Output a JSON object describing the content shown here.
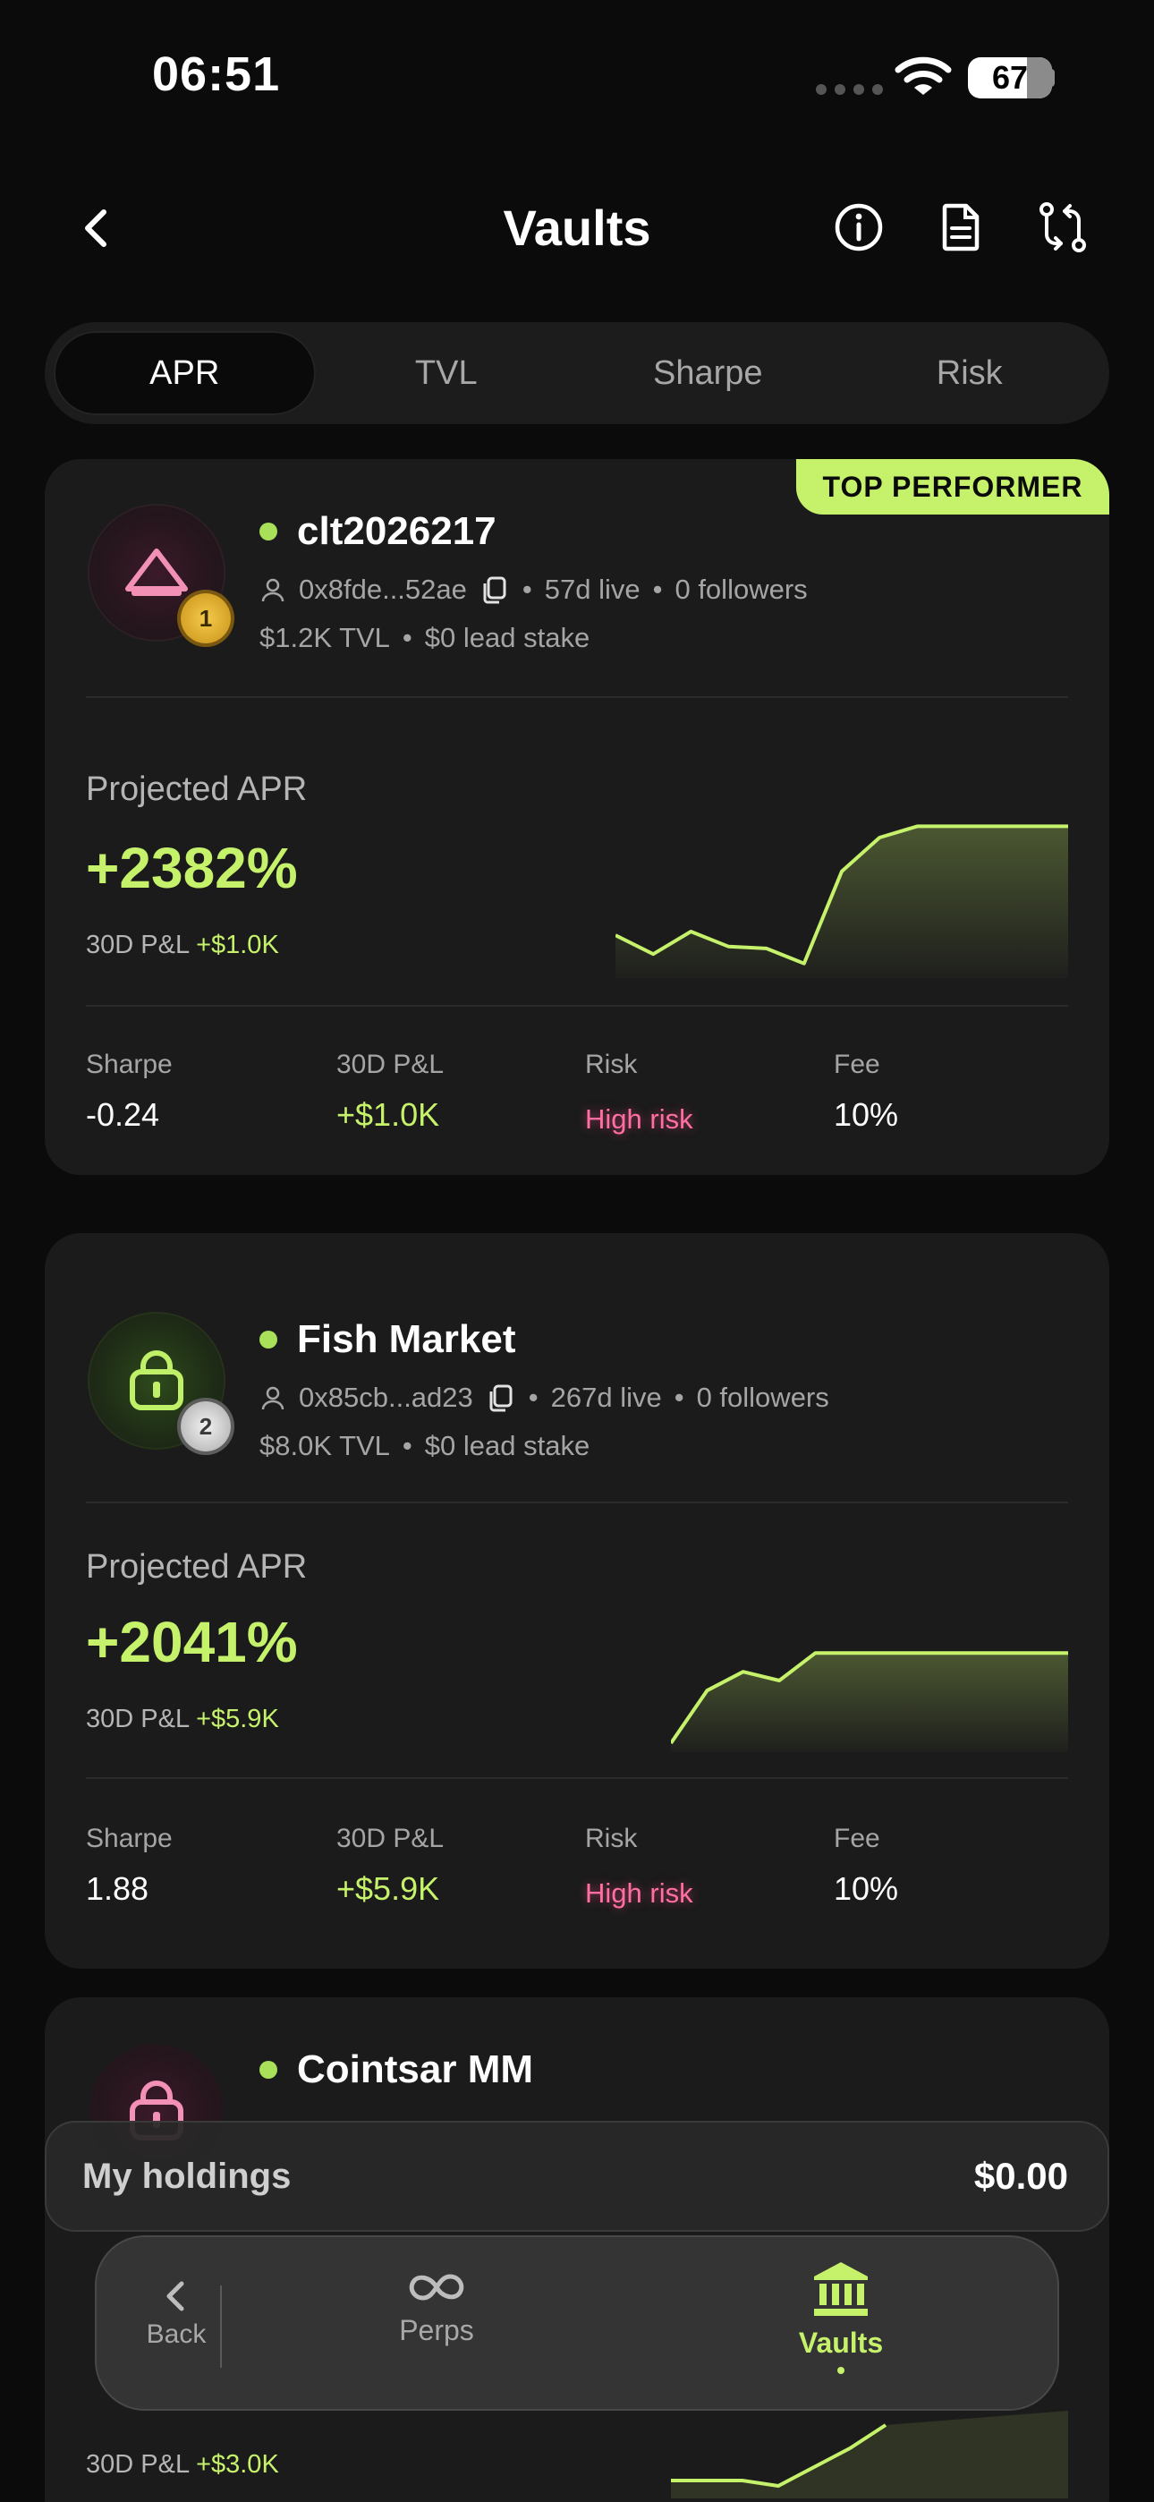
{
  "status_bar": {
    "time": "06:51",
    "battery": "67"
  },
  "header": {
    "title": "Vaults"
  },
  "tabs": [
    {
      "label": "APR",
      "active": true
    },
    {
      "label": "TVL",
      "active": false
    },
    {
      "label": "Sharpe",
      "active": false
    },
    {
      "label": "Risk",
      "active": false
    }
  ],
  "badge": {
    "top_performer": "TOP PERFORMER"
  },
  "vaults": [
    {
      "name": "clt2026217",
      "rank": "1",
      "address": "0x8fde...52ae",
      "live": "57d live",
      "followers": "0 followers",
      "tvl": "$1.2K TVL",
      "lead_stake": "$0 lead stake",
      "apr_label": "Projected APR",
      "apr": "+2382%",
      "pnl_label": "30D P&L",
      "pnl": "+$1.0K",
      "stats": {
        "sharpe_label": "Sharpe",
        "sharpe": "-0.24",
        "pnl_label": "30D P&L",
        "pnl": "+$1.0K",
        "risk_label": "Risk",
        "risk": "High risk",
        "fee_label": "Fee",
        "fee": "10%"
      },
      "sparkline": [
        0.18,
        0.08,
        0.2,
        0.12,
        0.11,
        0.03,
        0.52,
        0.7,
        0.76,
        0.76,
        0.76,
        0.76,
        0.76
      ]
    },
    {
      "name": "Fish Market",
      "rank": "2",
      "address": "0x85cb...ad23",
      "live": "267d live",
      "followers": "0 followers",
      "tvl": "$8.0K TVL",
      "lead_stake": "$0 lead stake",
      "apr_label": "Projected APR",
      "apr": "+2041%",
      "pnl_label": "30D P&L",
      "pnl": "+$5.9K",
      "stats": {
        "sharpe_label": "Sharpe",
        "sharpe": "1.88",
        "pnl_label": "30D P&L",
        "pnl": "+$5.9K",
        "risk_label": "Risk",
        "risk": "High risk",
        "fee_label": "Fee",
        "fee": "10%"
      },
      "sparkline": [
        0.0,
        0.42,
        0.57,
        0.5,
        0.72,
        0.72,
        0.72,
        0.72,
        0.72,
        0.72,
        0.72,
        0.72
      ]
    },
    {
      "name": "Cointsar MM",
      "pnl_label": "30D P&L",
      "pnl": "+$3.0K"
    }
  ],
  "holdings": {
    "label": "My holdings",
    "value": "$0.00"
  },
  "bottom_nav": {
    "back": "Back",
    "items": [
      {
        "label": "Perps",
        "icon": "infinity-icon",
        "active": false
      },
      {
        "label": "Vaults",
        "icon": "bank-icon",
        "active": true
      }
    ]
  },
  "colors": {
    "accent": "#c6f26b",
    "risk": "#ff6fa3",
    "background": "#0b0b0b",
    "card": "#1b1b1b"
  }
}
